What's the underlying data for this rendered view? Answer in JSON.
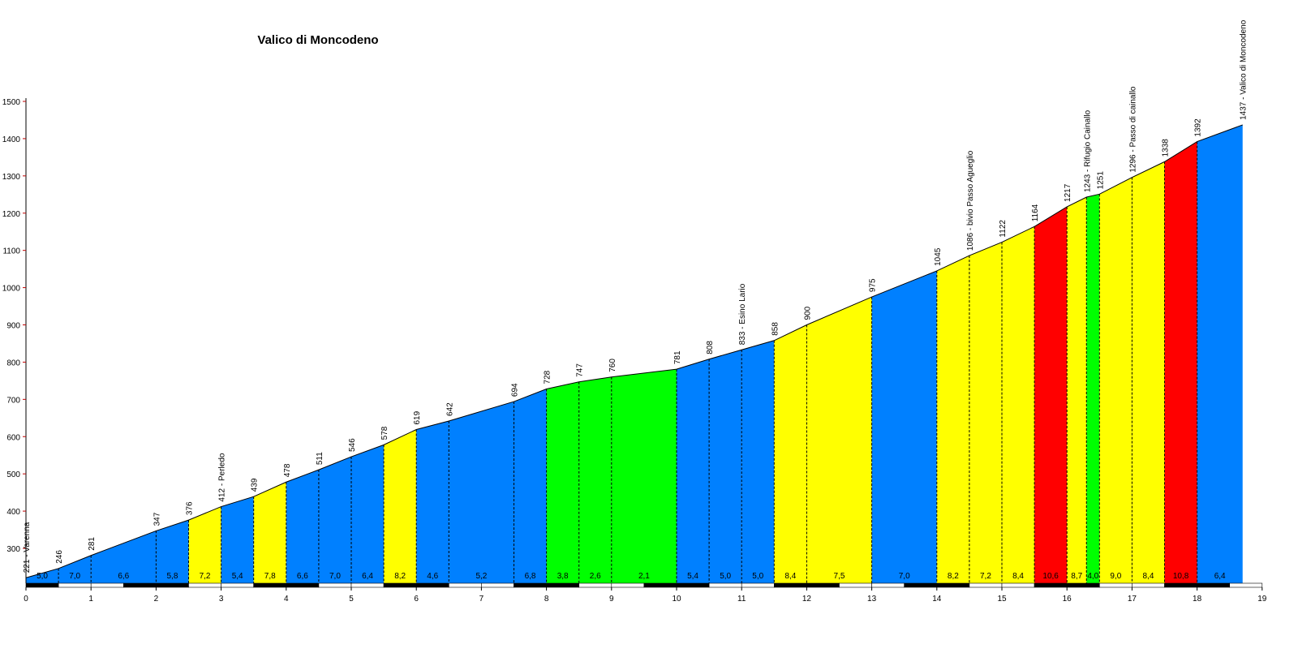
{
  "chart_data": {
    "type": "area",
    "title": "Valico di Moncodeno",
    "xlabel": "",
    "ylabel": "",
    "xlim": [
      0,
      19
    ],
    "ylim": [
      200,
      1500
    ],
    "x_ticks": [
      "0",
      "1",
      "2",
      "3",
      "4",
      "5",
      "6",
      "7",
      "8",
      "9",
      "10",
      "11",
      "12",
      "13",
      "14",
      "15",
      "16",
      "17",
      "18",
      "19"
    ],
    "y_ticks": [
      "300",
      "400",
      "500",
      "600",
      "700",
      "800",
      "900",
      "1000",
      "1100",
      "1200",
      "1300",
      "1400",
      "1500"
    ],
    "colors": {
      "blue": "#0080FF",
      "yellow": "#FFFF00",
      "green": "#00FF00",
      "red": "#FF0000"
    },
    "profile": [
      {
        "km": 0.0,
        "alt": 221,
        "label": "221 - Varenna"
      },
      {
        "km": 0.5,
        "alt": 246,
        "label": "246"
      },
      {
        "km": 1.0,
        "alt": 281,
        "label": "281"
      },
      {
        "km": 2.0,
        "alt": 347,
        "label": "347"
      },
      {
        "km": 2.5,
        "alt": 376,
        "label": "376"
      },
      {
        "km": 3.0,
        "alt": 412,
        "label": "412 - Perledo"
      },
      {
        "km": 3.5,
        "alt": 439,
        "label": "439"
      },
      {
        "km": 4.0,
        "alt": 478,
        "label": "478"
      },
      {
        "km": 4.5,
        "alt": 511,
        "label": "511"
      },
      {
        "km": 5.0,
        "alt": 546,
        "label": "546"
      },
      {
        "km": 5.5,
        "alt": 578,
        "label": "578"
      },
      {
        "km": 6.0,
        "alt": 619,
        "label": "619"
      },
      {
        "km": 6.5,
        "alt": 642,
        "label": "642"
      },
      {
        "km": 7.5,
        "alt": 694,
        "label": "694"
      },
      {
        "km": 8.0,
        "alt": 728,
        "label": "728"
      },
      {
        "km": 8.5,
        "alt": 747,
        "label": "747"
      },
      {
        "km": 9.0,
        "alt": 760,
        "label": "760"
      },
      {
        "km": 10.0,
        "alt": 781,
        "label": "781"
      },
      {
        "km": 10.5,
        "alt": 808,
        "label": "808"
      },
      {
        "km": 11.0,
        "alt": 833,
        "label": "833 - Esino Lario"
      },
      {
        "km": 11.5,
        "alt": 858,
        "label": "858"
      },
      {
        "km": 12.0,
        "alt": 900,
        "label": "900"
      },
      {
        "km": 13.0,
        "alt": 975,
        "label": "975"
      },
      {
        "km": 14.0,
        "alt": 1045,
        "label": "1045"
      },
      {
        "km": 14.5,
        "alt": 1086,
        "label": "1086 - bivio Passo Agueglio"
      },
      {
        "km": 15.0,
        "alt": 1122,
        "label": "1122"
      },
      {
        "km": 15.5,
        "alt": 1164,
        "label": "1164"
      },
      {
        "km": 16.0,
        "alt": 1217,
        "label": "1217"
      },
      {
        "km": 16.3,
        "alt": 1243,
        "label": "1243 - Rifugio Cainallo"
      },
      {
        "km": 16.5,
        "alt": 1251,
        "label": "1251"
      },
      {
        "km": 17.0,
        "alt": 1296,
        "label": "1296 - Passo di cainallo"
      },
      {
        "km": 17.5,
        "alt": 1338,
        "label": "1338"
      },
      {
        "km": 18.0,
        "alt": 1392,
        "label": "1392"
      },
      {
        "km": 18.7,
        "alt": 1437,
        "label": "1437 - Valico di Moncodeno"
      }
    ],
    "segments": [
      {
        "grade": "5,0",
        "color": "blue"
      },
      {
        "grade": "7,0",
        "color": "blue"
      },
      {
        "grade": "6,6",
        "color": "blue"
      },
      {
        "grade": "5,8",
        "color": "blue"
      },
      {
        "grade": "7,2",
        "color": "yellow"
      },
      {
        "grade": "5,4",
        "color": "blue"
      },
      {
        "grade": "7,8",
        "color": "yellow"
      },
      {
        "grade": "6,6",
        "color": "blue"
      },
      {
        "grade": "7,0",
        "color": "blue"
      },
      {
        "grade": "6,4",
        "color": "blue"
      },
      {
        "grade": "8,2",
        "color": "yellow"
      },
      {
        "grade": "4,6",
        "color": "blue"
      },
      {
        "grade": "5,2",
        "color": "blue"
      },
      {
        "grade": "6,8",
        "color": "blue"
      },
      {
        "grade": "3,8",
        "color": "green"
      },
      {
        "grade": "2,6",
        "color": "green"
      },
      {
        "grade": "2,1",
        "color": "green"
      },
      {
        "grade": "5,4",
        "color": "blue"
      },
      {
        "grade": "5,0",
        "color": "blue"
      },
      {
        "grade": "5,0",
        "color": "blue"
      },
      {
        "grade": "8,4",
        "color": "yellow"
      },
      {
        "grade": "7,5",
        "color": "yellow"
      },
      {
        "grade": "7,0",
        "color": "blue"
      },
      {
        "grade": "8,2",
        "color": "yellow"
      },
      {
        "grade": "7,2",
        "color": "yellow"
      },
      {
        "grade": "8,4",
        "color": "yellow"
      },
      {
        "grade": "10,6",
        "color": "red"
      },
      {
        "grade": "8,7",
        "color": "yellow"
      },
      {
        "grade": "4,0",
        "color": "green"
      },
      {
        "grade": "9,0",
        "color": "yellow"
      },
      {
        "grade": "8,4",
        "color": "yellow"
      },
      {
        "grade": "10,8",
        "color": "red"
      },
      {
        "grade": "6,4",
        "color": "blue"
      }
    ]
  }
}
